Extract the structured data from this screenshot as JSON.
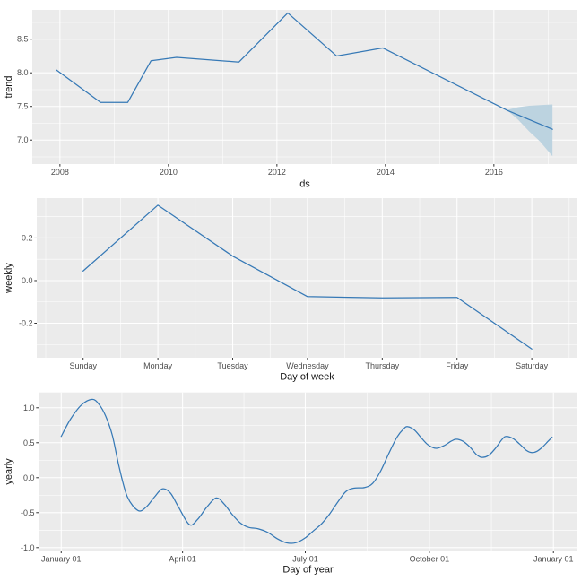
{
  "figure": {
    "panel_bg": "#ebebeb",
    "grid_color": "#ffffff",
    "line_color": "#3679b6",
    "band_color": "#bcd3e0",
    "tick_mark_color": "#333333",
    "tick_text_color": "#4d4d4d",
    "axis_title_color": "#141414"
  },
  "chart_data": [
    {
      "type": "line",
      "name": "trend",
      "xlabel": "ds",
      "ylabel": "trend",
      "xlim": [
        2007.49,
        2017.54
      ],
      "ylim": [
        6.643,
        8.936
      ],
      "x_ticks": [
        {
          "v": 2008,
          "label": "2008"
        },
        {
          "v": 2010,
          "label": "2010"
        },
        {
          "v": 2012,
          "label": "2012"
        },
        {
          "v": 2014,
          "label": "2014"
        },
        {
          "v": 2016,
          "label": "2016"
        }
      ],
      "x_minor_ticks": [
        2009,
        2011,
        2013,
        2015,
        2017
      ],
      "y_ticks": [
        {
          "v": 7.0,
          "label": "7.0"
        },
        {
          "v": 7.5,
          "label": "7.5"
        },
        {
          "v": 8.0,
          "label": "8.0"
        },
        {
          "v": 8.5,
          "label": "8.5"
        }
      ],
      "y_minor_ticks": [
        6.75,
        7.25,
        7.75,
        8.25,
        8.75
      ],
      "smooth": false,
      "x": [
        2007.94,
        2008.75,
        2009.25,
        2009.68,
        2010.15,
        2011.3,
        2012.2,
        2013.1,
        2013.95,
        2016.25,
        2017.08
      ],
      "y": [
        8.04,
        7.56,
        7.56,
        8.18,
        8.23,
        8.16,
        8.89,
        8.25,
        8.37,
        7.44,
        7.16
      ],
      "band": {
        "x": [
          2016.25,
          2016.45,
          2016.65,
          2016.85,
          2017.08
        ],
        "upper": [
          7.45,
          7.49,
          7.51,
          7.52,
          7.53
        ],
        "lower": [
          7.44,
          7.3,
          7.13,
          6.98,
          6.76
        ]
      }
    },
    {
      "type": "line",
      "name": "weekly",
      "xlabel": "Day of week",
      "ylabel": "weekly",
      "xlim": [
        -0.62,
        6.61
      ],
      "ylim": [
        -0.362,
        0.387
      ],
      "x_ticks": [
        {
          "v": 0,
          "label": "Sunday"
        },
        {
          "v": 1,
          "label": "Monday"
        },
        {
          "v": 2,
          "label": "Tuesday"
        },
        {
          "v": 3,
          "label": "Wednesday"
        },
        {
          "v": 4,
          "label": "Thursday"
        },
        {
          "v": 5,
          "label": "Friday"
        },
        {
          "v": 6,
          "label": "Saturday"
        }
      ],
      "x_minor_ticks": [
        -0.5,
        0.5,
        1.5,
        2.5,
        3.5,
        4.5,
        5.5,
        6.5
      ],
      "y_ticks": [
        {
          "v": -0.2,
          "label": "-0.2"
        },
        {
          "v": 0.0,
          "label": "0.0"
        },
        {
          "v": 0.2,
          "label": "0.2"
        }
      ],
      "y_minor_ticks": [
        -0.3,
        -0.1,
        0.1,
        0.3
      ],
      "smooth": false,
      "x": [
        0,
        1,
        2,
        3,
        4,
        5,
        6
      ],
      "y": [
        0.045,
        0.354,
        0.115,
        -0.075,
        -0.081,
        -0.079,
        -0.321
      ]
    },
    {
      "type": "line",
      "name": "yearly",
      "xlabel": "Day of year",
      "ylabel": "yearly",
      "xlim": [
        -15.8,
        383.8
      ],
      "ylim": [
        -1.045,
        1.219
      ],
      "x_ticks": [
        {
          "v": 1,
          "label": "January 01"
        },
        {
          "v": 91,
          "label": "April 01"
        },
        {
          "v": 182,
          "label": "July 01"
        },
        {
          "v": 274,
          "label": "October 01"
        },
        {
          "v": 366,
          "label": "January 01"
        }
      ],
      "x_minor_ticks": [
        46,
        136.5,
        228,
        320
      ],
      "y_ticks": [
        {
          "v": -1.0,
          "label": "-1.0"
        },
        {
          "v": -0.5,
          "label": "-0.5"
        },
        {
          "v": 0.0,
          "label": "0.0"
        },
        {
          "v": 0.5,
          "label": "0.5"
        },
        {
          "v": 1.0,
          "label": "1.0"
        }
      ],
      "y_minor_ticks": [
        -0.75,
        -0.25,
        0.25,
        0.75
      ],
      "smooth": true,
      "x": [
        1,
        8,
        16,
        24,
        29,
        34,
        39,
        44,
        50,
        58,
        64,
        70,
        76,
        82,
        88,
        96,
        102,
        109,
        116,
        122,
        128,
        134,
        140,
        147,
        154,
        161,
        168,
        175,
        182,
        188,
        194,
        200,
        206,
        212,
        218,
        226,
        232,
        238,
        244,
        250,
        255,
        258,
        263,
        268,
        273,
        279,
        285,
        290,
        294,
        299,
        304,
        309,
        313,
        318,
        323,
        328,
        331,
        336,
        341,
        346,
        350,
        354,
        358,
        362,
        365
      ],
      "y": [
        0.59,
        0.84,
        1.04,
        1.12,
        1.05,
        0.88,
        0.6,
        0.15,
        -0.27,
        -0.47,
        -0.42,
        -0.28,
        -0.16,
        -0.22,
        -0.42,
        -0.67,
        -0.6,
        -0.42,
        -0.29,
        -0.38,
        -0.53,
        -0.65,
        -0.71,
        -0.73,
        -0.78,
        -0.87,
        -0.93,
        -0.93,
        -0.86,
        -0.76,
        -0.66,
        -0.52,
        -0.35,
        -0.2,
        -0.15,
        -0.14,
        -0.08,
        0.1,
        0.35,
        0.58,
        0.7,
        0.73,
        0.68,
        0.57,
        0.47,
        0.42,
        0.46,
        0.52,
        0.55,
        0.52,
        0.44,
        0.33,
        0.29,
        0.32,
        0.42,
        0.55,
        0.59,
        0.56,
        0.48,
        0.39,
        0.36,
        0.38,
        0.44,
        0.52,
        0.58
      ]
    }
  ]
}
